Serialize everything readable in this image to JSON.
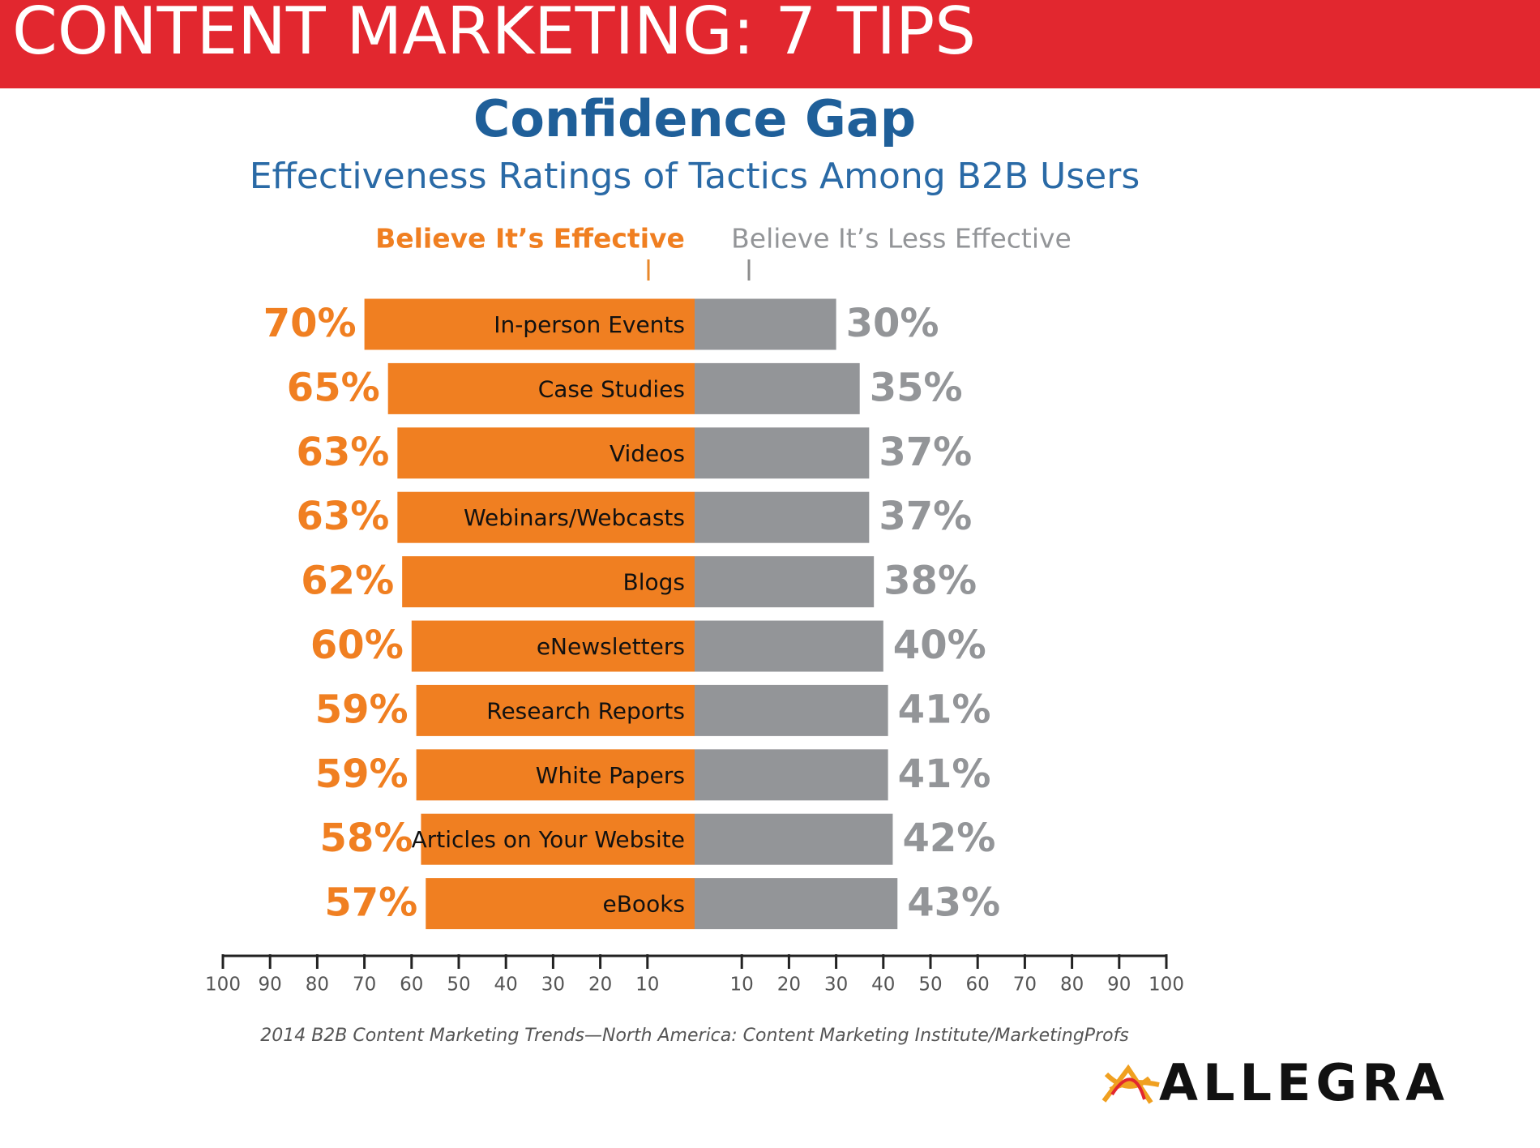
{
  "header": {
    "title": "CONTENT MARKETING: 7 TIPS"
  },
  "chart_data": {
    "type": "diverging_bar",
    "title": "Confidence Gap",
    "subtitle": "Effectiveness Ratings of Tactics Among B2B Users",
    "categories": [
      "In-person Events",
      "Case Studies",
      "Videos",
      "Webinars/Webcasts",
      "Blogs",
      "eNewsletters",
      "Research Reports",
      "White Papers",
      "Articles on Your Website",
      "eBooks"
    ],
    "series": [
      {
        "name": "Believe It’s Effective",
        "color": "#f07f21",
        "values": [
          70,
          65,
          63,
          63,
          62,
          60,
          59,
          59,
          58,
          57
        ],
        "value_labels": [
          "70%",
          "65%",
          "63%",
          "63%",
          "62%",
          "60%",
          "59%",
          "59%",
          "58%",
          "57%"
        ]
      },
      {
        "name": "Believe It’s Less Effective",
        "color": "#939598",
        "values": [
          30,
          35,
          37,
          37,
          38,
          40,
          41,
          41,
          42,
          43
        ],
        "value_labels": [
          "30%",
          "35%",
          "37%",
          "37%",
          "38%",
          "40%",
          "41%",
          "41%",
          "42%",
          "43%"
        ]
      }
    ],
    "xlim": [
      -100,
      100
    ],
    "xticks": [
      {
        "value": -100,
        "label": "100"
      },
      {
        "value": -90,
        "label": "90"
      },
      {
        "value": -80,
        "label": "80"
      },
      {
        "value": -70,
        "label": "70"
      },
      {
        "value": -60,
        "label": "60"
      },
      {
        "value": -50,
        "label": "50"
      },
      {
        "value": -40,
        "label": "40"
      },
      {
        "value": -30,
        "label": "30"
      },
      {
        "value": -20,
        "label": "20"
      },
      {
        "value": -10,
        "label": "10"
      },
      10,
      20,
      30,
      40,
      50,
      60,
      70,
      80,
      90,
      100
    ],
    "source": "2014 B2B Content Marketing Trends—North America: Content Marketing Institute/MarketingProfs"
  },
  "logo": {
    "text": "ALLEGRA"
  }
}
